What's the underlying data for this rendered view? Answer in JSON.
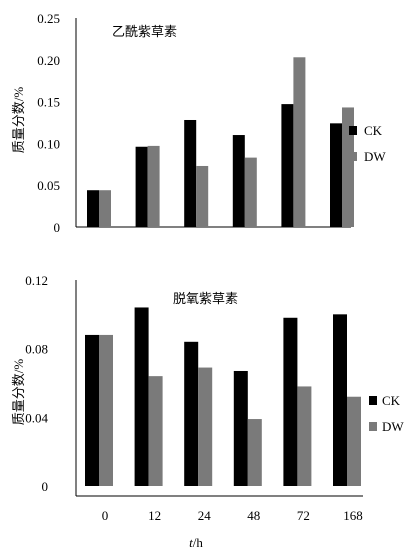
{
  "colors": {
    "ck": "#000000",
    "dw": "#7a7a7a"
  },
  "chart_data": [
    {
      "type": "bar",
      "title": "乙酰紫草素",
      "ylabel": "质量分数/%",
      "xlabel": "",
      "categories": [
        "0",
        "12",
        "24",
        "48",
        "72",
        "168"
      ],
      "show_xtick_labels": false,
      "yticks": [
        "0",
        "0.05",
        "0.10",
        "0.15",
        "0.20",
        "0.25"
      ],
      "ylim": [
        0,
        0.25
      ],
      "series": [
        {
          "name": "CK",
          "values": [
            0.044,
            0.096,
            0.128,
            0.11,
            0.147,
            0.124
          ]
        },
        {
          "name": "DW",
          "values": [
            0.044,
            0.097,
            0.073,
            0.083,
            0.203,
            0.143
          ]
        }
      ],
      "legend": "right"
    },
    {
      "type": "bar",
      "title": "脱氧紫草素",
      "ylabel": "质量分数/%",
      "xlabel": "t/h",
      "categories": [
        "0",
        "12",
        "24",
        "48",
        "72",
        "168"
      ],
      "show_xtick_labels": true,
      "yticks": [
        "0",
        "0.04",
        "0.08",
        "0.12"
      ],
      "ylim": [
        0,
        0.12
      ],
      "series": [
        {
          "name": "CK",
          "values": [
            0.088,
            0.104,
            0.084,
            0.067,
            0.098,
            0.1
          ]
        },
        {
          "name": "DW",
          "values": [
            0.088,
            0.064,
            0.069,
            0.039,
            0.058,
            0.052
          ]
        }
      ],
      "legend": "right"
    }
  ]
}
